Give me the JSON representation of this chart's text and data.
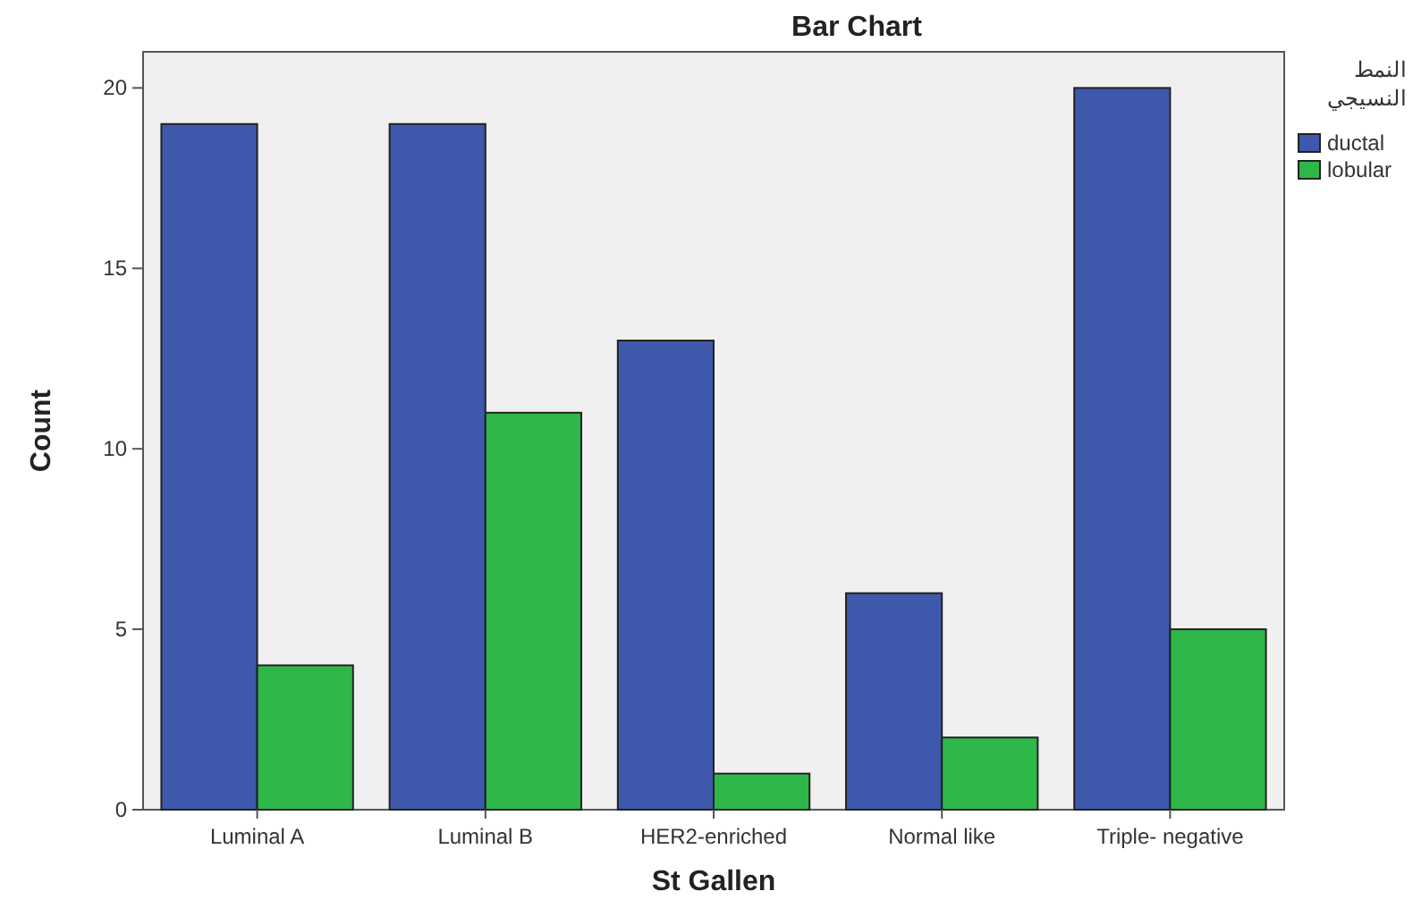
{
  "chart_data": {
    "type": "bar",
    "title": "Bar Chart",
    "xlabel": "St Gallen",
    "ylabel": "Count",
    "legend_title": "النمط النسيجي",
    "categories": [
      "Luminal A",
      "Luminal B",
      "HER2-enriched",
      "Normal like",
      "Triple- negative"
    ],
    "series": [
      {
        "name": "ductal",
        "color": "#3e58ac",
        "values": [
          19,
          19,
          13,
          6,
          20
        ]
      },
      {
        "name": "lobular",
        "color": "#2eb84a",
        "values": [
          4,
          11,
          1,
          2,
          5
        ]
      }
    ],
    "ylim": [
      0,
      21
    ],
    "yticks": [
      0,
      5,
      10,
      15,
      20
    ],
    "grid": false,
    "legend": "top right"
  }
}
